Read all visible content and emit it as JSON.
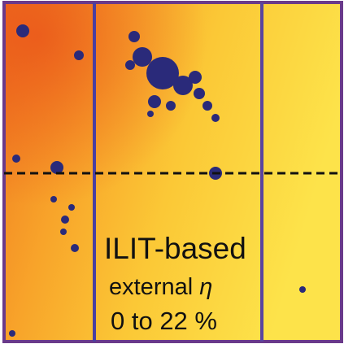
{
  "overlay": {
    "method": "ILIT-based",
    "quantity": "external",
    "symbol": "η",
    "range": "0 to 22 %"
  }
}
